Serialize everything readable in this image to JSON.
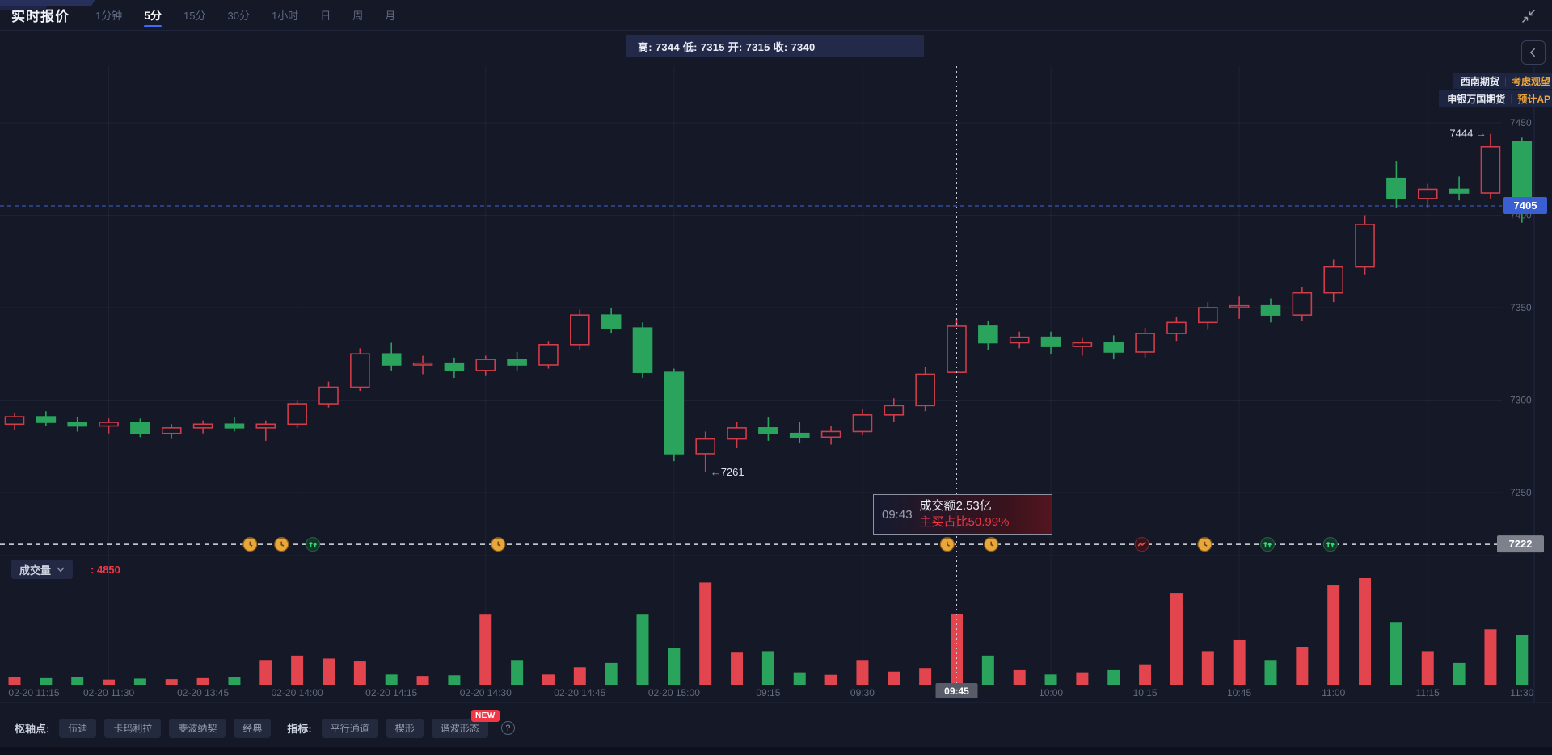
{
  "header": {
    "title": "实时报价",
    "tabs": [
      {
        "label": "1分钟",
        "active": false
      },
      {
        "label": "5分",
        "active": true
      },
      {
        "label": "15分",
        "active": false
      },
      {
        "label": "30分",
        "active": false
      },
      {
        "label": "1小时",
        "active": false
      },
      {
        "label": "日",
        "active": false
      },
      {
        "label": "周",
        "active": false
      },
      {
        "label": "月",
        "active": false
      }
    ]
  },
  "ohlc_tooltip": {
    "text": "高: 7344 低: 7315 开: 7315 收: 7340"
  },
  "news_pills": [
    {
      "source": "西南期货",
      "note": "考虑观望"
    },
    {
      "source": "申银万国期货",
      "note": "预计AP"
    }
  ],
  "hover_tooltip": {
    "time": "09:43",
    "line1": "成交额2.53亿",
    "line2": "主买占比50.99%"
  },
  "volume_header": {
    "label": "成交量",
    "value": ": 4850"
  },
  "toolbar": {
    "pivot_label": "枢轴点:",
    "pivot_buttons": [
      "伍迪",
      "卡玛利拉",
      "斐波纳契",
      "经典"
    ],
    "indicator_label": "指标:",
    "indicator_buttons": [
      "平行通道",
      "楔形",
      "谐波形态"
    ],
    "new_badge": "NEW",
    "help_icon": "?"
  },
  "colors": {
    "up": "#d03c49",
    "down": "#2aa35c",
    "vol_up": "#e2454e",
    "vol_down": "#2aa35c",
    "accent_blue": "#3d6bf5",
    "level_blue": "#4064d8",
    "badge_blue": "#3a5fd3",
    "level_white": "#d9dce5",
    "badge_gray": "#7d818b",
    "red_text": "#f23645",
    "orange_text": "#eda73b"
  },
  "chart_data": {
    "type": "candlestick_with_volume",
    "interval": "5分",
    "price_gridlines": [
      7450,
      7400,
      7350,
      7300,
      7250
    ],
    "ylim": [
      7216,
      7479
    ],
    "grid": true,
    "current_price_level": {
      "price": 7405,
      "badge": "7405"
    },
    "lower_level": {
      "price": 7222,
      "badge": "7222"
    },
    "crosshair": {
      "candle_index": 30,
      "time_badge": "09:45"
    },
    "time_labels": [
      "02-20 11:15",
      "02-20 11:30",
      "02-20 13:45",
      "02-20 14:00",
      "02-20 14:15",
      "02-20 14:30",
      "02-20 14:45",
      "02-20 15:00",
      "09:15",
      "09:30",
      "09:45",
      "10:00",
      "10:15",
      "10:45",
      "11:00",
      "11:15",
      "11:30"
    ],
    "labels_every_n_candles": 3,
    "candles": [
      [
        7287,
        7293,
        7284,
        7291,
        500
      ],
      [
        7291,
        7294,
        7286,
        7288,
        450
      ],
      [
        7288,
        7291,
        7283,
        7286,
        550
      ],
      [
        7286,
        7290,
        7282,
        7288,
        350
      ],
      [
        7288,
        7290,
        7280,
        7282,
        420
      ],
      [
        7282,
        7287,
        7279,
        7285,
        380
      ],
      [
        7285,
        7289,
        7282,
        7287,
        450
      ],
      [
        7287,
        7291,
        7283,
        7285,
        500
      ],
      [
        7285,
        7289,
        7278,
        7287,
        1700
      ],
      [
        7287,
        7300,
        7285,
        7298,
        2000
      ],
      [
        7298,
        7310,
        7296,
        7307,
        1800
      ],
      [
        7307,
        7328,
        7305,
        7325,
        1600
      ],
      [
        7325,
        7331,
        7316,
        7319,
        700
      ],
      [
        7319,
        7324,
        7314,
        7320,
        600
      ],
      [
        7320,
        7323,
        7312,
        7316,
        650
      ],
      [
        7316,
        7324,
        7313,
        7322,
        4800
      ],
      [
        7322,
        7326,
        7316,
        7319,
        1700
      ],
      [
        7319,
        7332,
        7317,
        7330,
        700
      ],
      [
        7330,
        7349,
        7327,
        7346,
        1200
      ],
      [
        7346,
        7350,
        7336,
        7339,
        1500
      ],
      [
        7339,
        7342,
        7312,
        7315,
        4800
      ],
      [
        7315,
        7317,
        7267,
        7271,
        2500
      ],
      [
        7271,
        7283,
        7261,
        7279,
        7000
      ],
      [
        7279,
        7288,
        7274,
        7285,
        2200
      ],
      [
        7285,
        7291,
        7278,
        7282,
        2300
      ],
      [
        7282,
        7288,
        7277,
        7280,
        850
      ],
      [
        7280,
        7286,
        7276,
        7283,
        680
      ],
      [
        7283,
        7295,
        7281,
        7292,
        1700
      ],
      [
        7292,
        7301,
        7288,
        7297,
        900
      ],
      [
        7297,
        7318,
        7294,
        7314,
        1150
      ],
      [
        7315,
        7344,
        7315,
        7340,
        4850
      ],
      [
        7340,
        7343,
        7327,
        7331,
        2000
      ],
      [
        7331,
        7337,
        7328,
        7334,
        1000
      ],
      [
        7334,
        7337,
        7325,
        7329,
        700
      ],
      [
        7329,
        7334,
        7324,
        7331,
        850
      ],
      [
        7331,
        7335,
        7322,
        7326,
        1000
      ],
      [
        7326,
        7339,
        7323,
        7336,
        1400
      ],
      [
        7336,
        7345,
        7332,
        7342,
        6300
      ],
      [
        7342,
        7353,
        7338,
        7350,
        2300
      ],
      [
        7350,
        7356,
        7344,
        7351,
        3100
      ],
      [
        7351,
        7355,
        7342,
        7346,
        1700
      ],
      [
        7346,
        7361,
        7343,
        7358,
        2600
      ],
      [
        7358,
        7376,
        7353,
        7372,
        6800
      ],
      [
        7372,
        7400,
        7368,
        7395,
        7300
      ],
      [
        7420,
        7429,
        7404,
        7409,
        4300
      ],
      [
        7409,
        7417,
        7404,
        7414,
        2300
      ],
      [
        7414,
        7421,
        7408,
        7412,
        1500
      ],
      [
        7412,
        7444,
        7409,
        7437,
        3800
      ],
      [
        7440,
        7442,
        7396,
        7405,
        3400
      ]
    ],
    "annotations": [
      {
        "candle_index": 47,
        "price": 7444,
        "text": "7444",
        "arrow": "→",
        "side": "left"
      },
      {
        "candle_index": 22,
        "price": 7261,
        "text": "7261",
        "arrow": "←",
        "side": "right"
      }
    ],
    "markers": [
      {
        "candle_index": 7.5,
        "type": "orange"
      },
      {
        "candle_index": 8.5,
        "type": "orange"
      },
      {
        "candle_index": 9.5,
        "type": "green"
      },
      {
        "candle_index": 15.4,
        "type": "orange"
      },
      {
        "candle_index": 29.7,
        "type": "orange"
      },
      {
        "candle_index": 31.1,
        "type": "orange"
      },
      {
        "candle_index": 35.9,
        "type": "red"
      },
      {
        "candle_index": 37.9,
        "type": "orange"
      },
      {
        "candle_index": 39.9,
        "type": "green"
      },
      {
        "candle_index": 41.9,
        "type": "green"
      }
    ]
  }
}
